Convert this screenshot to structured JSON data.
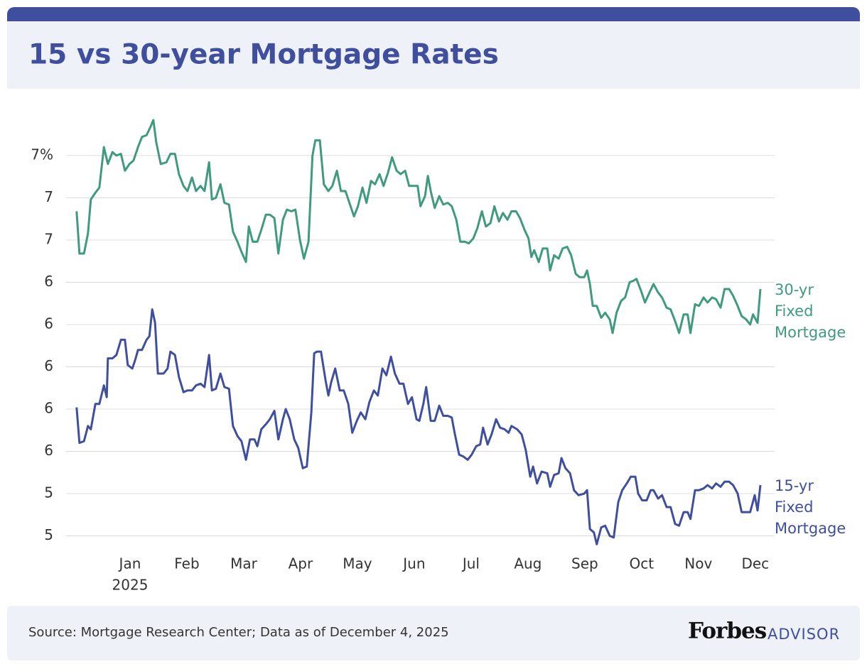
{
  "chart_data": {
    "type": "line",
    "title": "15 vs 30-year Mortgage Rates",
    "source": "Source: Mortgage Research Center; Data as of December 4, 2025",
    "brand": "Forbes",
    "brand_sub": "ADVISOR",
    "xlim": [
      -1.125,
      11.34
    ],
    "xticks": [
      {
        "value": 0,
        "label": "Jan"
      },
      {
        "value": 1,
        "label": "Feb"
      },
      {
        "value": 2,
        "label": "Mar"
      },
      {
        "value": 3,
        "label": "Apr"
      },
      {
        "value": 4,
        "label": "May"
      },
      {
        "value": 5,
        "label": "Jun"
      },
      {
        "value": 6,
        "label": "Jul"
      },
      {
        "value": 7,
        "label": "Aug"
      },
      {
        "value": 8,
        "label": "Sep"
      },
      {
        "value": 9,
        "label": "Oct"
      },
      {
        "value": 10,
        "label": "Nov"
      },
      {
        "value": 11,
        "label": "Dec"
      }
    ],
    "x_year_label": "2025",
    "ylim": [
      4.92,
      7.5
    ],
    "yticks": [
      {
        "value": 7.25,
        "label": "7%"
      },
      7,
      {
        "value": 6.75,
        "label": "7"
      },
      {
        "value": 6.5,
        "label": "6"
      },
      {
        "value": 6.25,
        "label": "6"
      },
      6,
      {
        "value": 5.75,
        "label": "6"
      },
      {
        "value": 5.5,
        "label": "6"
      },
      {
        "value": 5.25,
        "label": "5"
      },
      5
    ],
    "grid": true,
    "series": [
      {
        "name": "30-yr Fixed Mortgage",
        "color": "#3f9a80",
        "x": [
          -0.94,
          -0.89,
          -0.81,
          -0.74,
          -0.69,
          -0.61,
          -0.54,
          -0.46,
          -0.39,
          -0.31,
          -0.24,
          -0.16,
          -0.09,
          -0.01,
          0.06,
          0.14,
          0.21,
          0.29,
          0.36,
          0.41,
          0.46,
          0.54,
          0.64,
          0.71,
          0.79,
          0.86,
          0.94,
          1.01,
          1.09,
          1.16,
          1.24,
          1.31,
          1.39,
          1.44,
          1.51,
          1.59,
          1.66,
          1.74,
          1.81,
          1.89,
          1.96,
          2.04,
          2.09,
          2.16,
          2.24,
          2.31,
          2.39,
          2.46,
          2.54,
          2.61,
          2.69,
          2.76,
          2.84,
          2.91,
          2.99,
          3.06,
          3.14,
          3.21,
          3.26,
          3.34,
          3.41,
          3.49,
          3.56,
          3.64,
          3.71,
          3.79,
          3.86,
          3.94,
          4.01,
          4.09,
          4.16,
          4.24,
          4.31,
          4.39,
          4.46,
          4.54,
          4.61,
          4.69,
          4.76,
          4.84,
          4.91,
          4.99,
          5.06,
          5.11,
          5.19,
          5.24,
          5.29,
          5.36,
          5.44,
          5.51,
          5.59,
          5.66,
          5.74,
          5.81,
          5.89,
          5.96,
          6.04,
          6.11,
          6.19,
          6.26,
          6.34,
          6.41,
          6.49,
          6.56,
          6.64,
          6.71,
          6.79,
          6.86,
          6.94,
          7.01,
          7.06,
          7.11,
          7.19,
          7.26,
          7.34,
          7.39,
          7.46,
          7.54,
          7.61,
          7.69,
          7.76,
          7.84,
          7.91,
          7.99,
          8.04,
          8.09,
          8.14,
          8.21,
          8.29,
          8.36,
          8.44,
          8.49,
          8.56,
          8.64,
          8.71,
          8.79,
          8.86,
          8.91,
          8.99,
          9.06,
          9.14,
          9.21,
          9.29,
          9.36,
          9.44,
          9.51,
          9.59,
          9.66,
          9.74,
          9.81,
          9.86,
          9.94,
          10.01,
          10.09,
          10.16,
          10.24,
          10.31,
          10.39,
          10.46,
          10.54,
          10.61,
          10.69,
          10.76,
          10.84,
          10.91,
          10.96,
          11.04,
          11.09
        ],
        "values": [
          6.92,
          6.67,
          6.67,
          6.79,
          6.99,
          7.03,
          7.06,
          7.3,
          7.2,
          7.27,
          7.25,
          7.26,
          7.16,
          7.2,
          7.22,
          7.3,
          7.36,
          7.37,
          7.42,
          7.46,
          7.33,
          7.2,
          7.21,
          7.26,
          7.26,
          7.14,
          7.07,
          7.04,
          7.12,
          7.04,
          7.07,
          7.04,
          7.21,
          6.99,
          7.0,
          7.08,
          6.97,
          6.96,
          6.8,
          6.74,
          6.68,
          6.62,
          6.83,
          6.74,
          6.74,
          6.81,
          6.9,
          6.9,
          6.88,
          6.67,
          6.87,
          6.93,
          6.92,
          6.93,
          6.75,
          6.64,
          6.74,
          7.25,
          7.34,
          7.34,
          7.08,
          7.04,
          7.07,
          7.16,
          7.04,
          7.04,
          6.97,
          6.89,
          6.95,
          7.06,
          6.97,
          7.1,
          7.08,
          7.14,
          7.07,
          7.15,
          7.24,
          7.16,
          7.14,
          7.16,
          7.07,
          7.07,
          7.07,
          6.95,
          7.01,
          7.13,
          7.04,
          6.94,
          7.01,
          6.96,
          6.97,
          6.95,
          6.87,
          6.74,
          6.74,
          6.73,
          6.76,
          6.82,
          6.92,
          6.83,
          6.85,
          6.95,
          6.86,
          6.91,
          6.87,
          6.92,
          6.92,
          6.88,
          6.81,
          6.76,
          6.65,
          6.69,
          6.62,
          6.7,
          6.7,
          6.57,
          6.66,
          6.64,
          6.7,
          6.71,
          6.66,
          6.55,
          6.53,
          6.53,
          6.57,
          6.49,
          6.36,
          6.36,
          6.29,
          6.32,
          6.28,
          6.2,
          6.32,
          6.39,
          6.41,
          6.5,
          6.51,
          6.52,
          6.45,
          6.38,
          6.44,
          6.49,
          6.44,
          6.41,
          6.35,
          6.34,
          6.27,
          6.2,
          6.31,
          6.31,
          6.2,
          6.37,
          6.36,
          6.41,
          6.38,
          6.41,
          6.4,
          6.35,
          6.46,
          6.46,
          6.42,
          6.36,
          6.3,
          6.28,
          6.25,
          6.31,
          6.26,
          6.46
        ]
      },
      {
        "name": "15-yr Fixed Mortgage",
        "color": "#3f4f9e",
        "x": [
          -0.94,
          -0.89,
          -0.81,
          -0.74,
          -0.69,
          -0.61,
          -0.54,
          -0.46,
          -0.41,
          -0.39,
          -0.31,
          -0.24,
          -0.16,
          -0.09,
          -0.04,
          0.04,
          0.09,
          0.14,
          0.21,
          0.29,
          0.34,
          0.39,
          0.44,
          0.49,
          0.59,
          0.66,
          0.71,
          0.79,
          0.86,
          0.94,
          1.01,
          1.09,
          1.16,
          1.24,
          1.31,
          1.39,
          1.44,
          1.51,
          1.59,
          1.66,
          1.74,
          1.81,
          1.89,
          1.96,
          2.04,
          2.11,
          2.19,
          2.24,
          2.31,
          2.39,
          2.46,
          2.54,
          2.61,
          2.69,
          2.74,
          2.81,
          2.89,
          2.96,
          3.04,
          3.11,
          3.19,
          3.24,
          3.29,
          3.36,
          3.44,
          3.49,
          3.54,
          3.61,
          3.69,
          3.76,
          3.84,
          3.91,
          3.99,
          4.06,
          4.14,
          4.21,
          4.29,
          4.36,
          4.44,
          4.51,
          4.59,
          4.66,
          4.74,
          4.81,
          4.89,
          4.96,
          5.04,
          5.09,
          5.16,
          5.21,
          5.29,
          5.36,
          5.44,
          5.51,
          5.59,
          5.66,
          5.71,
          5.79,
          5.86,
          5.94,
          6.01,
          6.09,
          6.16,
          6.21,
          6.29,
          6.36,
          6.44,
          6.51,
          6.59,
          6.66,
          6.71,
          6.81,
          6.89,
          6.96,
          7.04,
          7.09,
          7.16,
          7.24,
          7.34,
          7.39,
          7.46,
          7.54,
          7.59,
          7.66,
          7.74,
          7.81,
          7.89,
          7.99,
          8.04,
          8.09,
          8.16,
          8.21,
          8.29,
          8.36,
          8.44,
          8.51,
          8.59,
          8.66,
          8.74,
          8.81,
          8.89,
          8.94,
          9.01,
          9.09,
          9.16,
          9.21,
          9.29,
          9.36,
          9.44,
          9.51,
          9.59,
          9.66,
          9.74,
          9.81,
          9.86,
          9.94,
          10.01,
          10.09,
          10.16,
          10.24,
          10.31,
          10.39,
          10.46,
          10.54,
          10.61,
          10.69,
          10.76,
          10.84,
          10.91,
          10.99,
          11.04,
          11.09
        ],
        "values": [
          5.76,
          5.55,
          5.56,
          5.65,
          5.63,
          5.78,
          5.78,
          5.89,
          5.82,
          6.05,
          6.05,
          6.07,
          6.16,
          6.16,
          6.01,
          5.99,
          6.04,
          6.1,
          6.1,
          6.16,
          6.18,
          6.34,
          6.26,
          5.96,
          5.96,
          5.99,
          6.09,
          6.07,
          5.94,
          5.85,
          5.86,
          5.86,
          5.89,
          5.9,
          5.88,
          6.07,
          5.86,
          5.87,
          5.96,
          5.88,
          5.87,
          5.65,
          5.59,
          5.56,
          5.45,
          5.57,
          5.57,
          5.53,
          5.63,
          5.66,
          5.69,
          5.74,
          5.57,
          5.69,
          5.75,
          5.69,
          5.57,
          5.52,
          5.4,
          5.41,
          5.73,
          6.08,
          6.09,
          6.09,
          5.92,
          5.83,
          5.91,
          5.99,
          5.86,
          5.86,
          5.78,
          5.61,
          5.68,
          5.73,
          5.69,
          5.79,
          5.86,
          5.83,
          5.99,
          5.95,
          6.06,
          5.96,
          5.9,
          5.9,
          5.78,
          5.82,
          5.69,
          5.68,
          5.78,
          5.88,
          5.68,
          5.68,
          5.77,
          5.71,
          5.71,
          5.7,
          5.61,
          5.48,
          5.47,
          5.45,
          5.48,
          5.53,
          5.54,
          5.64,
          5.54,
          5.6,
          5.69,
          5.64,
          5.63,
          5.61,
          5.65,
          5.63,
          5.6,
          5.51,
          5.35,
          5.41,
          5.31,
          5.38,
          5.37,
          5.29,
          5.36,
          5.37,
          5.46,
          5.4,
          5.37,
          5.27,
          5.24,
          5.25,
          5.27,
          5.04,
          5.02,
          4.95,
          5.05,
          5.06,
          5.0,
          4.99,
          5.2,
          5.27,
          5.31,
          5.35,
          5.35,
          5.25,
          5.21,
          5.21,
          5.27,
          5.27,
          5.22,
          5.24,
          5.17,
          5.17,
          5.07,
          5.06,
          5.14,
          5.14,
          5.1,
          5.27,
          5.27,
          5.28,
          5.3,
          5.28,
          5.31,
          5.29,
          5.32,
          5.32,
          5.3,
          5.25,
          5.14,
          5.14,
          5.14,
          5.24,
          5.15,
          5.3
        ]
      }
    ]
  }
}
